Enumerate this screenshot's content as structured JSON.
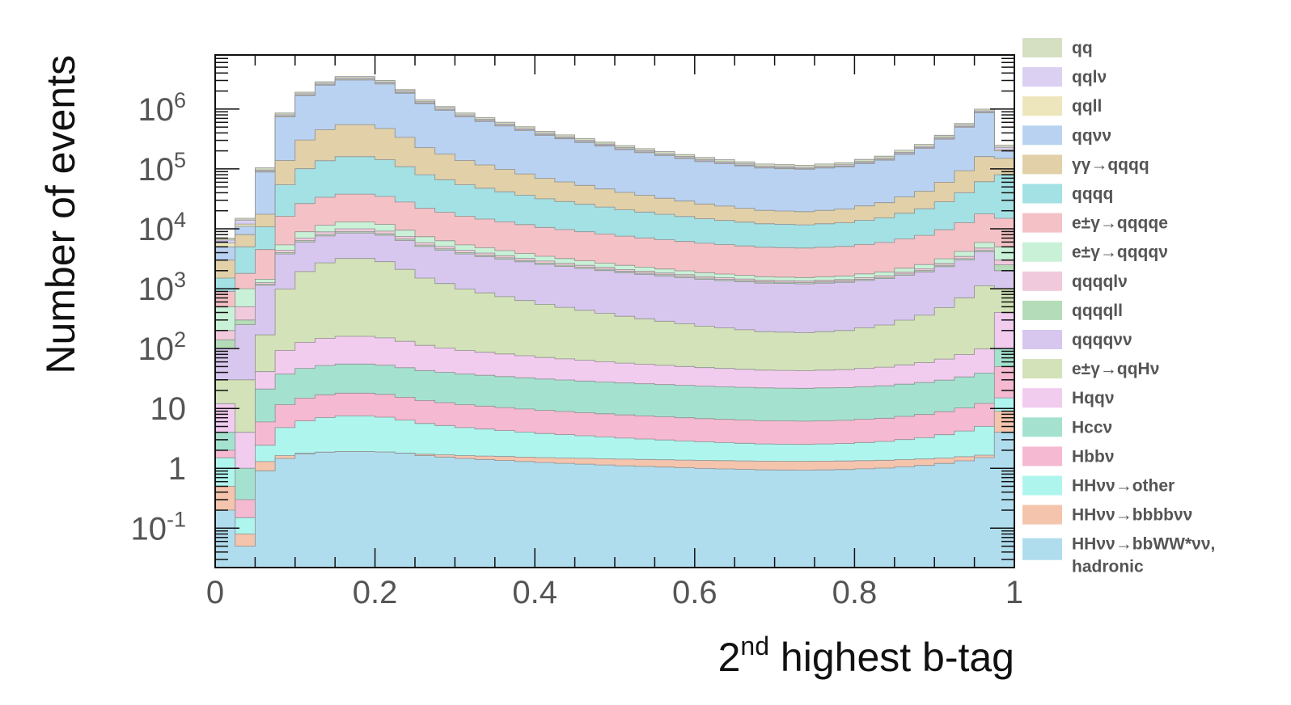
{
  "chart_data": {
    "type": "stacked-histogram",
    "xlabel": {
      "base": "2",
      "sup": "nd",
      "rest": " highest b-tag"
    },
    "ylabel": "Number of events",
    "x_range": [
      0,
      1
    ],
    "y_range": [
      0.022,
      8000000
    ],
    "y_scale": "log",
    "bin_width": 0.025,
    "x_ticks": [
      "0",
      "0.2",
      "0.4",
      "0.6",
      "0.8",
      "1"
    ],
    "y_ticks": [
      {
        "value": 0.1,
        "base": "10",
        "sup": "-1"
      },
      {
        "value": 1,
        "base": "1",
        "sup": ""
      },
      {
        "value": 10,
        "base": "10",
        "sup": ""
      },
      {
        "value": 100,
        "base": "10",
        "sup": "2"
      },
      {
        "value": 1000,
        "base": "10",
        "sup": "3"
      },
      {
        "value": 10000,
        "base": "10",
        "sup": "4"
      },
      {
        "value": 100000,
        "base": "10",
        "sup": "5"
      },
      {
        "value": 1000000,
        "base": "10",
        "sup": "6"
      }
    ],
    "profile_points": [
      {
        "x": 0.0375,
        "f": 0.05
      },
      {
        "x": 0.0625,
        "f": 0.3
      },
      {
        "x": 0.0875,
        "f": 0.72
      },
      {
        "x": 0.1125,
        "f": 0.88
      },
      {
        "x": 0.1375,
        "f": 0.96
      },
      {
        "x": 0.1625,
        "f": 1.0
      },
      {
        "x": 0.1875,
        "f": 1.0
      },
      {
        "x": 0.2125,
        "f": 0.97
      },
      {
        "x": 0.2375,
        "f": 0.9
      },
      {
        "x": 0.2625,
        "f": 0.82
      },
      {
        "x": 0.3125,
        "f": 0.72
      },
      {
        "x": 0.4125,
        "f": 0.58
      },
      {
        "x": 0.5125,
        "f": 0.47
      },
      {
        "x": 0.6125,
        "f": 0.38
      },
      {
        "x": 0.6875,
        "f": 0.33
      },
      {
        "x": 0.7375,
        "f": 0.32
      },
      {
        "x": 0.7875,
        "f": 0.34
      },
      {
        "x": 0.8375,
        "f": 0.39
      },
      {
        "x": 0.8875,
        "f": 0.48
      },
      {
        "x": 0.9125,
        "f": 0.55
      },
      {
        "x": 0.9375,
        "f": 0.64
      },
      {
        "x": 0.9625,
        "f": 0.75
      },
      {
        "x": 0.9875,
        "f": 0.9
      }
    ],
    "first_bins": [
      {
        "x": 0.0125,
        "totals": [
          7000,
          6500,
          5800,
          5000,
          3000,
          1500,
          900,
          500,
          200,
          140,
          100,
          30,
          12,
          4,
          2,
          1.5,
          0.5,
          0.2
        ]
      },
      {
        "x": 0.0375,
        "totals": [
          15000,
          14000,
          12000,
          11000,
          8000,
          5000,
          1800,
          1000,
          500,
          300,
          250,
          30,
          4,
          1,
          0.3,
          0.15,
          0.08,
          0.05
        ]
      }
    ],
    "series": [
      {
        "name": "qq",
        "color": "#d5dfc1",
        "lo": 23000,
        "hi": 3500000
      },
      {
        "name": "qqlν",
        "color": "#dbd0f2",
        "lo": 21000,
        "hi": 3300000
      },
      {
        "name": "qqll",
        "color": "#ede6bc",
        "lo": 20000,
        "hi": 3150000
      },
      {
        "name": "qqνν",
        "color": "#b9d2f1",
        "lo": 19500,
        "hi": 3050000
      },
      {
        "name": "γγ→qqqq",
        "color": "#e1d0a8",
        "lo": 4000,
        "hi": 550000
      },
      {
        "name": "qqqq",
        "color": "#a4e1e5",
        "lo": 3400,
        "hi": 160000
      },
      {
        "name": "e±γ→qqqqe",
        "color": "#f4c2c6",
        "lo": 1800,
        "hi": 38000
      },
      {
        "name": "e±γ→qqqqν",
        "color": "#c9f1d7",
        "lo": 560,
        "hi": 13000
      },
      {
        "name": "qqqqlν",
        "color": "#f1c9dc",
        "lo": 520,
        "hi": 10000
      },
      {
        "name": "qqqqll",
        "color": "#b5dcb8",
        "lo": 500,
        "hi": 9000
      },
      {
        "name": "qqqqνν",
        "color": "#d7c7ef",
        "lo": 480,
        "hi": 8500
      },
      {
        "name": "e±γ→qqHν",
        "color": "#d3e2b8",
        "lo": 48,
        "hi": 3200
      },
      {
        "name": "Hqqν",
        "color": "#f1ccef",
        "lo": 23,
        "hi": 160
      },
      {
        "name": "Hccν",
        "color": "#a4e2cf",
        "lo": 14,
        "hi": 55
      },
      {
        "name": "Hbbν",
        "color": "#f5b9d1",
        "lo": 3.7,
        "hi": 18
      },
      {
        "name": "HHνν→other",
        "color": "#aef5ee",
        "lo": 1.5,
        "hi": 7.5
      },
      {
        "name": "HHνν→bbbbνν",
        "color": "#f4c4ad",
        "lo": 1.1,
        "hi": 1.9
      },
      {
        "name": "HHνν→bbWW*νν, hadronic",
        "color": "#b0ddee",
        "lo": 0.65,
        "hi": 2.0
      }
    ],
    "last_bin": {
      "x": 0.9875,
      "totals": [
        250000,
        230000,
        210000,
        200000,
        150000,
        80000,
        15000,
        5000,
        3000,
        2500,
        2000,
        1000,
        400,
        100,
        50,
        15,
        9,
        4
      ]
    },
    "legend": {
      "placement": "right",
      "entries": [
        [
          "qq"
        ],
        [
          "qqlν"
        ],
        [
          "qqll"
        ],
        [
          "qqνν"
        ],
        [
          "γγ→qqqq"
        ],
        [
          "qqqq"
        ],
        [
          "e±γ→qqqqe"
        ],
        [
          "e±γ→qqqqν"
        ],
        [
          "qqqqlν"
        ],
        [
          "qqqqll"
        ],
        [
          "qqqqνν"
        ],
        [
          "e±γ→qqHν"
        ],
        [
          "Hqqν"
        ],
        [
          "Hccν"
        ],
        [
          "Hbbν"
        ],
        [
          "HHνν→other"
        ],
        [
          "HHνν→bbbbνν"
        ],
        [
          "HHνν→bbWW*νν,",
          "hadronic"
        ]
      ]
    }
  }
}
